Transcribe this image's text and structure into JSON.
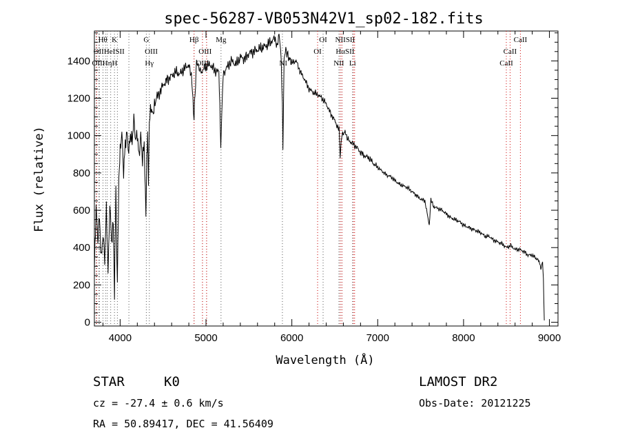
{
  "chart_data": {
    "type": "line",
    "title": "spec-56287-VB053N42V1_sp02-182.fits",
    "xlabel": "Wavelength (Å)",
    "ylabel": "Flux (relative)",
    "xlim": [
      3700,
      9100
    ],
    "ylim": [
      -20,
      1560
    ],
    "xticks": [
      4000,
      5000,
      6000,
      7000,
      8000,
      9000
    ],
    "yticks": [
      0,
      200,
      400,
      600,
      800,
      1000,
      1200,
      1400
    ],
    "grid": false,
    "series": [
      {
        "x": [
          3700,
          3720,
          3740,
          3760,
          3780,
          3800,
          3820,
          3840,
          3860,
          3880,
          3900,
          3920,
          3934,
          3950,
          3968,
          3985,
          4000,
          4020,
          4040,
          4060,
          4080,
          4100,
          4120,
          4140,
          4160,
          4180,
          4200,
          4220,
          4240,
          4260,
          4280,
          4300,
          4310,
          4320,
          4330,
          4340,
          4360,
          4380,
          4400,
          4450,
          4500,
          4550,
          4600,
          4650,
          4700,
          4750,
          4800,
          4830,
          4861,
          4890,
          4920,
          4950,
          5000,
          5050,
          5100,
          5150,
          5172,
          5200,
          5250,
          5300,
          5350,
          5400,
          5450,
          5500,
          5550,
          5600,
          5650,
          5700,
          5750,
          5800,
          5820,
          5850,
          5870,
          5890,
          5896,
          5910,
          5930,
          5960,
          6000,
          6050,
          6100,
          6150,
          6200,
          6250,
          6300,
          6350,
          6400,
          6450,
          6500,
          6550,
          6563,
          6580,
          6620,
          6650,
          6700,
          6750,
          6800,
          6850,
          6900,
          6950,
          7000,
          7050,
          7100,
          7150,
          7200,
          7250,
          7300,
          7350,
          7400,
          7450,
          7500,
          7550,
          7600,
          7620,
          7650,
          7700,
          7750,
          7800,
          7850,
          7900,
          7950,
          8000,
          8050,
          8100,
          8150,
          8200,
          8250,
          8300,
          8350,
          8400,
          8450,
          8500,
          8550,
          8600,
          8650,
          8700,
          8750,
          8800,
          8850,
          8880,
          8900,
          8920,
          8930,
          8940
        ],
        "values": [
          300,
          620,
          420,
          560,
          350,
          480,
          320,
          600,
          280,
          650,
          420,
          520,
          180,
          700,
          200,
          780,
          900,
          1020,
          820,
          960,
          1000,
          900,
          1020,
          980,
          1080,
          960,
          1020,
          900,
          1000,
          850,
          960,
          580,
          900,
          1020,
          720,
          1050,
          1150,
          1120,
          1180,
          1220,
          1270,
          1300,
          1320,
          1340,
          1330,
          1360,
          1380,
          1320,
          1100,
          1400,
          1360,
          1340,
          1370,
          1380,
          1350,
          1340,
          950,
          1330,
          1370,
          1400,
          1380,
          1420,
          1410,
          1440,
          1450,
          1460,
          1470,
          1480,
          1500,
          1520,
          1470,
          1530,
          1460,
          1180,
          920,
          1430,
          1460,
          1420,
          1390,
          1400,
          1340,
          1300,
          1250,
          1230,
          1220,
          1200,
          1170,
          1120,
          1080,
          1030,
          880,
          1000,
          1020,
          980,
          960,
          940,
          910,
          890,
          880,
          850,
          830,
          810,
          790,
          780,
          760,
          740,
          730,
          720,
          700,
          680,
          660,
          650,
          520,
          660,
          620,
          610,
          600,
          580,
          560,
          550,
          540,
          520,
          510,
          500,
          490,
          480,
          460,
          460,
          440,
          430,
          420,
          400,
          410,
          390,
          390,
          380,
          360,
          360,
          340,
          330,
          290,
          320,
          230,
          10
        ]
      }
    ],
    "spectral_lines": [
      {
        "label": "Hθ",
        "wave": 3798,
        "row": 0,
        "anchor": "middle"
      },
      {
        "label": "K",
        "wave": 3934,
        "row": 0,
        "anchor": "middle"
      },
      {
        "label": "G",
        "wave": 4305,
        "row": 0,
        "anchor": "middle"
      },
      {
        "label": "Hβ",
        "wave": 4861,
        "row": 0,
        "anchor": "middle"
      },
      {
        "label": "Mg",
        "wave": 5175,
        "row": 0,
        "anchor": "middle"
      },
      {
        "label": "OI",
        "wave": 6364,
        "row": 0,
        "anchor": "middle"
      },
      {
        "label": "NIISII",
        "wave": 6620,
        "row": 0,
        "anchor": "middle"
      },
      {
        "label": "CaII",
        "wave": 8662,
        "row": 0,
        "anchor": "middle"
      },
      {
        "label": "OIIHeISII",
        "wave": 3870,
        "row": 1,
        "anchor": "middle"
      },
      {
        "label": "OIII",
        "wave": 4363,
        "row": 1,
        "anchor": "middle"
      },
      {
        "label": "OIII",
        "wave": 4990,
        "row": 1,
        "anchor": "middle"
      },
      {
        "label": "OI",
        "wave": 6300,
        "row": 1,
        "anchor": "middle"
      },
      {
        "label": "HαSII",
        "wave": 6620,
        "row": 1,
        "anchor": "middle"
      },
      {
        "label": "CaII",
        "wave": 8542,
        "row": 1,
        "anchor": "middle"
      },
      {
        "label": "OIIHηH",
        "wave": 3820,
        "row": 2,
        "anchor": "middle"
      },
      {
        "label": "Hγ",
        "wave": 4340,
        "row": 2,
        "anchor": "middle"
      },
      {
        "label": "OIII",
        "wave": 4959,
        "row": 2,
        "anchor": "middle"
      },
      {
        "label": "NI",
        "wave": 5900,
        "row": 2,
        "anchor": "middle"
      },
      {
        "label": "NII",
        "wave": 6548,
        "row": 2,
        "anchor": "middle"
      },
      {
        "label": "Li",
        "wave": 6707,
        "row": 2,
        "anchor": "middle"
      },
      {
        "label": "CaII",
        "wave": 8498,
        "row": 2,
        "anchor": "middle"
      }
    ],
    "black_marker_waves": [
      3720,
      3750,
      3760,
      3800,
      3830,
      3850,
      3890,
      3934,
      3968,
      4102,
      4305,
      4340,
      4861,
      4959,
      5007,
      5175,
      5890,
      6300,
      6364,
      6548,
      6563,
      6583,
      6707
    ],
    "red_marker_waves": [
      3727,
      4861,
      4959,
      5007,
      6300,
      6563,
      6583,
      6717,
      6731,
      8498,
      8542,
      8662
    ]
  },
  "footer": {
    "object_class": "STAR",
    "subclass": "K0",
    "survey": "LAMOST DR2",
    "redshift_text": "cz = -27.4 ± 0.6 km/s",
    "obs_date_text": "Obs-Date: 20121225",
    "coords_text": "RA =  50.89417, DEC =  41.56409"
  }
}
